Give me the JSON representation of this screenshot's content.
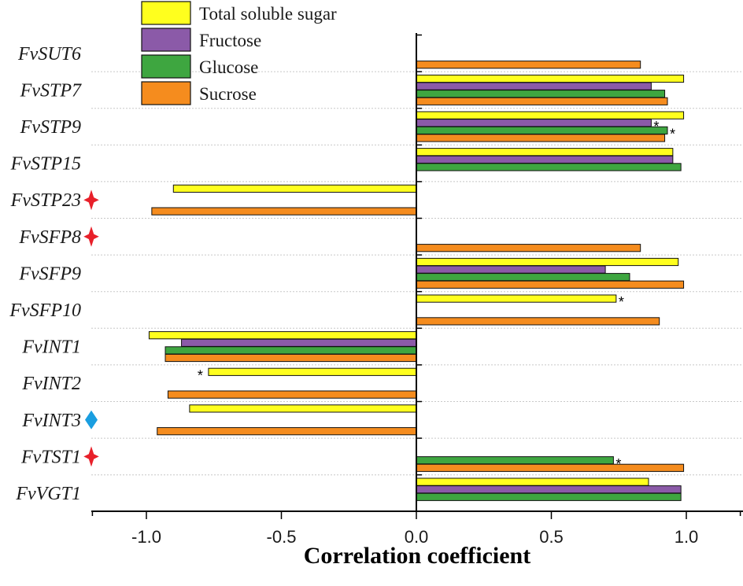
{
  "chart_data": {
    "type": "bar",
    "orientation": "horizontal",
    "xlabel": "Correlation coefficient",
    "xlim": [
      -1.2,
      1.2
    ],
    "xticks": [
      -1.0,
      -0.5,
      0.0,
      0.5,
      1.0
    ],
    "xtick_labels": [
      "-1.0",
      "-0.5",
      "0.0",
      "0.5",
      "1.0"
    ],
    "grid": "horizontal-dotted",
    "legend_position": "top-left",
    "categories": [
      "FvSUT6",
      "FvSTP7",
      "FvSTP9",
      "FvSTP15",
      "FvSTP23",
      "FvSFP8",
      "FvSFP9",
      "FvSFP10",
      "FvINT1",
      "FvINT2",
      "FvINT3",
      "FvTST1",
      "FvVGT1"
    ],
    "markers": {
      "FvSTP23": {
        "shape": "star",
        "color": "#e8202a"
      },
      "FvSFP8": {
        "shape": "star",
        "color": "#e8202a"
      },
      "FvINT3": {
        "shape": "diamond",
        "color": "#1a9ee0"
      },
      "FvTST1": {
        "shape": "star",
        "color": "#e8202a"
      }
    },
    "series": [
      {
        "name": "Total soluble sugar",
        "color": "#ffff1e",
        "values": [
          null,
          0.99,
          0.99,
          0.95,
          -0.9,
          null,
          0.97,
          0.74,
          -0.99,
          -0.77,
          -0.84,
          null,
          0.86
        ],
        "annotations": [
          null,
          null,
          null,
          null,
          null,
          null,
          null,
          "*",
          null,
          "*",
          null,
          null,
          null
        ]
      },
      {
        "name": "Fructose",
        "color": "#8b5aa8",
        "values": [
          null,
          0.87,
          0.87,
          0.95,
          null,
          null,
          0.7,
          null,
          -0.87,
          null,
          null,
          null,
          0.98
        ],
        "annotations": [
          null,
          null,
          "*",
          null,
          null,
          null,
          null,
          null,
          null,
          null,
          null,
          null,
          null
        ]
      },
      {
        "name": "Glucose",
        "color": "#3ea640",
        "values": [
          null,
          0.92,
          0.93,
          0.98,
          null,
          null,
          0.79,
          null,
          -0.93,
          null,
          null,
          0.73,
          0.98
        ],
        "annotations": [
          null,
          null,
          "*",
          null,
          null,
          null,
          null,
          null,
          null,
          null,
          null,
          "*",
          null
        ]
      },
      {
        "name": "Sucrose",
        "color": "#f58c1e",
        "values": [
          0.83,
          0.93,
          0.92,
          null,
          -0.98,
          0.83,
          0.99,
          0.9,
          -0.93,
          -0.92,
          -0.96,
          0.99,
          null
        ],
        "annotations": [
          null,
          null,
          null,
          null,
          null,
          null,
          null,
          null,
          null,
          null,
          null,
          null,
          null
        ]
      }
    ]
  }
}
